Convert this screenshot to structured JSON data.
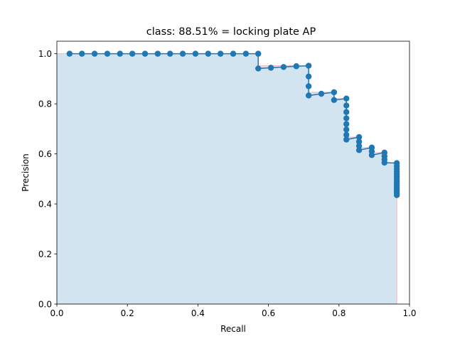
{
  "chart_data": {
    "type": "line",
    "title": "class: 88.51% = locking plate AP",
    "xlabel": "Recall",
    "ylabel": "Precision",
    "xlim": [
      0.0,
      1.0
    ],
    "ylim": [
      0.0,
      1.05
    ],
    "xticks": [
      "0.0",
      "0.2",
      "0.4",
      "0.6",
      "0.8",
      "1.0"
    ],
    "yticks": [
      "0.0",
      "0.2",
      "0.4",
      "0.6",
      "0.8",
      "1.0"
    ],
    "grid": false,
    "colors": {
      "line": "#1f77b4",
      "fill": "#1f77b4",
      "fill_alpha": 0.2,
      "envelope": "#f4b6b6"
    },
    "series": [
      {
        "recall": [
          0.036,
          0.071,
          0.107,
          0.143,
          0.179,
          0.214,
          0.25,
          0.286,
          0.321,
          0.357,
          0.393,
          0.429,
          0.464,
          0.5,
          0.536,
          0.571,
          0.571,
          0.607,
          0.643,
          0.679,
          0.714,
          0.714,
          0.714,
          0.714,
          0.75,
          0.786,
          0.786,
          0.821,
          0.821,
          0.821,
          0.821,
          0.821,
          0.821,
          0.821,
          0.821,
          0.857,
          0.857,
          0.857,
          0.857,
          0.893,
          0.893,
          0.893,
          0.929,
          0.929,
          0.929,
          0.929,
          0.964,
          0.964,
          0.964,
          0.964,
          0.964,
          0.964,
          0.964,
          0.964,
          0.964,
          0.964,
          0.964,
          0.964,
          0.964,
          0.964,
          0.964
        ],
        "precision": [
          1.0,
          1.0,
          1.0,
          1.0,
          1.0,
          1.0,
          1.0,
          1.0,
          1.0,
          1.0,
          1.0,
          1.0,
          1.0,
          1.0,
          1.0,
          1.0,
          0.941,
          0.944,
          0.947,
          0.95,
          0.952,
          0.909,
          0.87,
          0.833,
          0.84,
          0.846,
          0.815,
          0.821,
          0.793,
          0.767,
          0.742,
          0.719,
          0.697,
          0.676,
          0.657,
          0.667,
          0.649,
          0.632,
          0.615,
          0.625,
          0.61,
          0.595,
          0.605,
          0.591,
          0.578,
          0.565,
          0.563,
          0.551,
          0.54,
          0.529,
          0.519,
          0.509,
          0.5,
          0.491,
          0.482,
          0.474,
          0.466,
          0.458,
          0.45,
          0.443,
          0.435
        ]
      }
    ],
    "interpolated_envelope": {
      "recall": [
        0.0,
        0.571,
        0.571,
        0.714,
        0.714,
        0.786,
        0.786,
        0.821,
        0.821,
        0.857,
        0.857,
        0.893,
        0.893,
        0.929,
        0.929,
        0.964,
        0.964
      ],
      "precision": [
        1.0,
        1.0,
        0.952,
        0.952,
        0.846,
        0.846,
        0.821,
        0.821,
        0.667,
        0.667,
        0.625,
        0.625,
        0.605,
        0.605,
        0.563,
        0.563,
        0.0
      ]
    }
  }
}
